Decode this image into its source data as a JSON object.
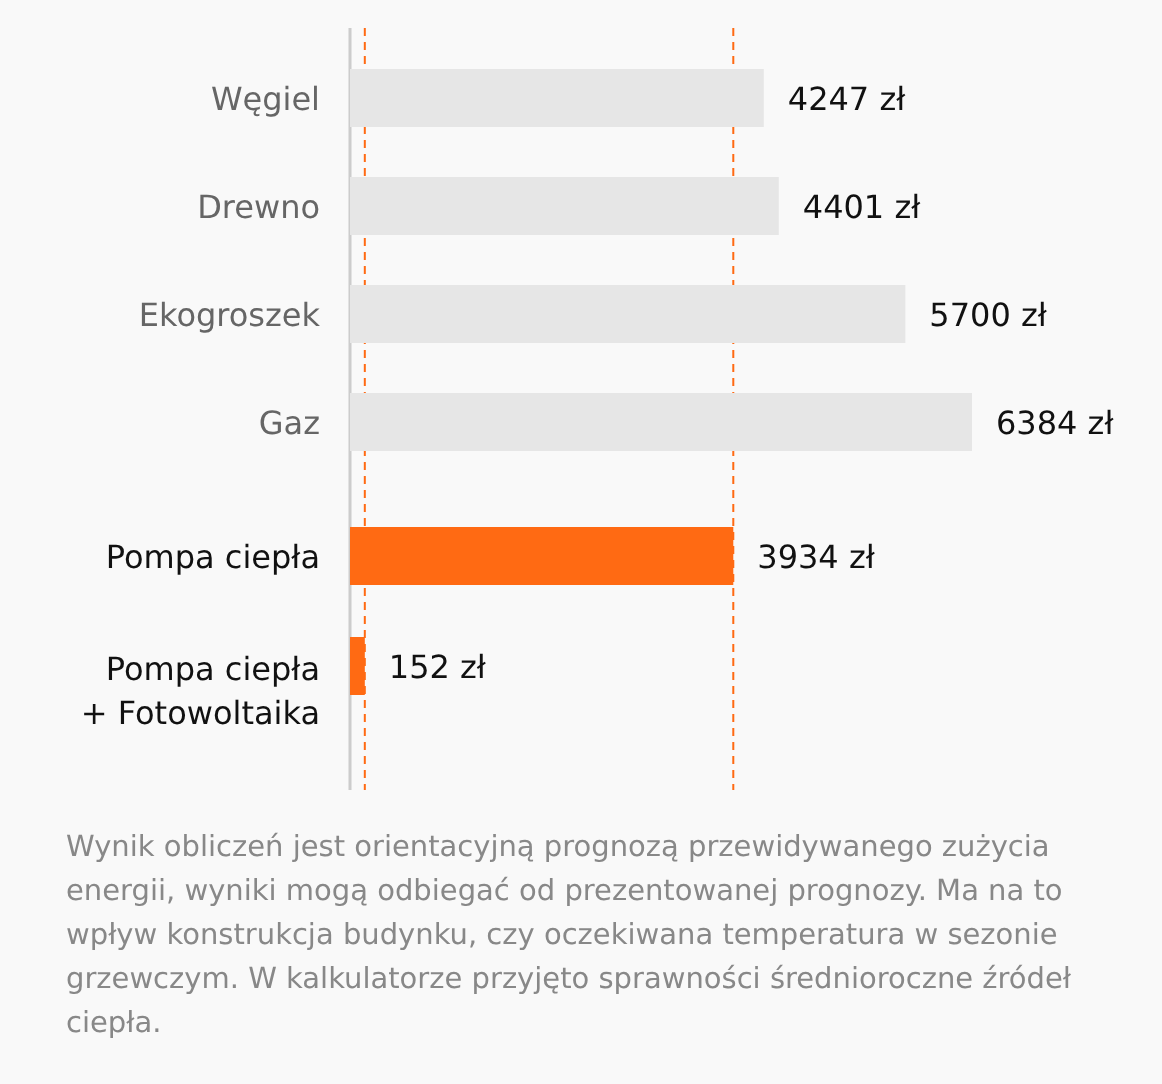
{
  "chart_data": {
    "type": "bar",
    "orientation": "horizontal",
    "categories": [
      "Węgiel",
      "Drewno",
      "Ekogroszek",
      "Gaz",
      "Pompa ciepła",
      "Pompa ciepła\n+ Fotowoltaika"
    ],
    "values": [
      4247,
      4401,
      5700,
      6384,
      3934,
      152
    ],
    "colors": [
      "#e6e6e6",
      "#e6e6e6",
      "#e6e6e6",
      "#e6e6e6",
      "#ff6a13",
      "#ff6a13"
    ],
    "value_labels": [
      "4247 zł",
      "4401 zł",
      "5700 zł",
      "6384 zł",
      "3934 zł",
      "152 zł"
    ],
    "ref_lines": [
      {
        "axis": "x",
        "value": 152,
        "color": "#ff6a13",
        "line_style": "dashed"
      },
      {
        "axis": "x",
        "value": 3934,
        "color": "#ff6a13",
        "line_style": "dashed"
      }
    ],
    "annotations": [
      "Wynik obliczeń jest orientacyjną prognozą przewidywanego zużycia energii, wyniki mogą odbiegać od prezentowanej prognozy. Ma na to wpływ konstrukcja budynku, czy oczekiwana temperatura w sezonie grzewczym. W kalkulatorze przyjęto sprawności średnioroczne źródeł ciepła."
    ]
  }
}
